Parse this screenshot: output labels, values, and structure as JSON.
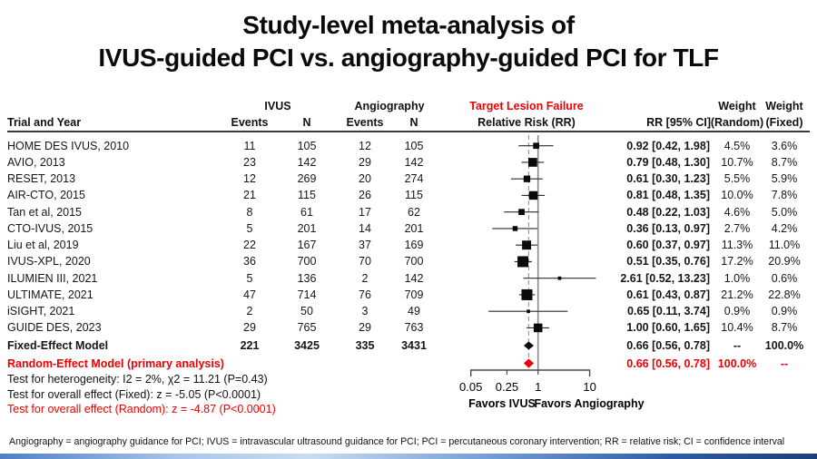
{
  "title": {
    "line1": "Study-level meta-analysis of",
    "line2": "IVUS-guided PCI vs. angiography-guided PCI for TLF"
  },
  "colors": {
    "red": "#ee0000",
    "black": "#0a0a0a",
    "null_line_gray": "#8a8a8a",
    "axis_gray": "#4a4a4a"
  },
  "header": {
    "trial": "Trial and Year",
    "group_ivus": "IVUS",
    "group_angio": "Angiography",
    "group_tlf": "Target  Lesion Failure",
    "events1": "Events",
    "n1": "N",
    "events2": "Events",
    "n2": "N",
    "rr_axis": "Relative Risk (RR)",
    "rr_ci": "RR [95% CI]",
    "weight1": "Weight",
    "weight2": "Weight",
    "random": "(Random)",
    "fixed": "(Fixed)"
  },
  "chart_data": {
    "type": "forest",
    "x_scale": "log",
    "axis_ticks": [
      0.05,
      0.25,
      1,
      10
    ],
    "axis_tick_labels": [
      "0.05",
      "0.25",
      "1",
      "10"
    ],
    "null_line": 1,
    "pooled_line": 0.66,
    "favors_left": "Favors IVUS",
    "favors_right": "Favors Angiography",
    "studies": [
      {
        "name": "HOME DES IVUS, 2010",
        "ivus_events": "11",
        "ivus_n": "105",
        "angio_events": "12",
        "angio_n": "105",
        "rr": 0.92,
        "lo": 0.42,
        "hi": 1.98,
        "rr_text": "0.92 [0.42, 1.98]",
        "w_random": "4.5%",
        "w_fixed": "3.6%",
        "weight": 4.5
      },
      {
        "name": "AVIO, 2013",
        "ivus_events": "23",
        "ivus_n": "142",
        "angio_events": "29",
        "angio_n": "142",
        "rr": 0.79,
        "lo": 0.48,
        "hi": 1.3,
        "rr_text": "0.79 [0.48, 1.30]",
        "w_random": "10.7%",
        "w_fixed": "8.7%",
        "weight": 10.7
      },
      {
        "name": "RESET, 2013",
        "ivus_events": "12",
        "ivus_n": "269",
        "angio_events": "20",
        "angio_n": "274",
        "rr": 0.61,
        "lo": 0.3,
        "hi": 1.23,
        "rr_text": "0.61 [0.30, 1.23]",
        "w_random": "5.5%",
        "w_fixed": "5.9%",
        "weight": 5.5
      },
      {
        "name": "AIR-CTO, 2015",
        "ivus_events": "21",
        "ivus_n": "115",
        "angio_events": "26",
        "angio_n": "115",
        "rr": 0.81,
        "lo": 0.48,
        "hi": 1.35,
        "rr_text": "0.81 [0.48, 1.35]",
        "w_random": "10.0%",
        "w_fixed": "7.8%",
        "weight": 10.0
      },
      {
        "name": "Tan et al, 2015",
        "ivus_events": "8",
        "ivus_n": "61",
        "angio_events": "17",
        "angio_n": "62",
        "rr": 0.48,
        "lo": 0.22,
        "hi": 1.03,
        "rr_text": "0.48 [0.22, 1.03]",
        "w_random": "4.6%",
        "w_fixed": "5.0%",
        "weight": 4.6
      },
      {
        "name": "CTO-IVUS, 2015",
        "ivus_events": "5",
        "ivus_n": "201",
        "angio_events": "14",
        "angio_n": "201",
        "rr": 0.36,
        "lo": 0.13,
        "hi": 0.97,
        "rr_text": "0.36 [0.13, 0.97]",
        "w_random": "2.7%",
        "w_fixed": "4.2%",
        "weight": 2.7
      },
      {
        "name": "Liu et al, 2019",
        "ivus_events": "22",
        "ivus_n": "167",
        "angio_events": "37",
        "angio_n": "169",
        "rr": 0.6,
        "lo": 0.37,
        "hi": 0.97,
        "rr_text": "0.60 [0.37, 0.97]",
        "w_random": "11.3%",
        "w_fixed": "11.0%",
        "weight": 11.3
      },
      {
        "name": "IVUS-XPL, 2020",
        "ivus_events": "36",
        "ivus_n": "700",
        "angio_events": "70",
        "angio_n": "700",
        "rr": 0.51,
        "lo": 0.35,
        "hi": 0.76,
        "rr_text": "0.51 [0.35, 0.76]",
        "w_random": "17.2%",
        "w_fixed": "20.9%",
        "weight": 17.2
      },
      {
        "name": "ILUMIEN III, 2021",
        "ivus_events": "5",
        "ivus_n": "136",
        "angio_events": "2",
        "angio_n": "142",
        "rr": 2.61,
        "lo": 0.52,
        "hi": 13.23,
        "rr_text": "2.61 [0.52, 13.23]",
        "w_random": "1.0%",
        "w_fixed": "0.6%",
        "weight": 1.0
      },
      {
        "name": "ULTIMATE, 2021",
        "ivus_events": "47",
        "ivus_n": "714",
        "angio_events": "76",
        "angio_n": "709",
        "rr": 0.61,
        "lo": 0.43,
        "hi": 0.87,
        "rr_text": "0.61 [0.43, 0.87]",
        "w_random": "21.2%",
        "w_fixed": "22.8%",
        "weight": 21.2
      },
      {
        "name": "iSIGHT, 2021",
        "ivus_events": "2",
        "ivus_n": "50",
        "angio_events": "3",
        "angio_n": "49",
        "rr": 0.65,
        "lo": 0.11,
        "hi": 3.74,
        "rr_text": "0.65 [0.11, 3.74]",
        "w_random": "0.9%",
        "w_fixed": "0.9%",
        "weight": 0.9
      },
      {
        "name": "GUIDE DES, 2023",
        "ivus_events": "29",
        "ivus_n": "765",
        "angio_events": "29",
        "angio_n": "763",
        "rr": 1.0,
        "lo": 0.6,
        "hi": 1.65,
        "rr_text": "1.00 [0.60, 1.65]",
        "w_random": "10.4%",
        "w_fixed": "8.7%",
        "weight": 10.4
      }
    ],
    "summary": [
      {
        "name": "Fixed-Effect Model",
        "ivus_events": "221",
        "ivus_n": "3425",
        "angio_events": "335",
        "angio_n": "3431",
        "rr": 0.66,
        "lo": 0.56,
        "hi": 0.78,
        "rr_text": "0.66 [0.56, 0.78]",
        "w_random": "--",
        "w_fixed": "100.0%",
        "style": "black"
      },
      {
        "name": "Random-Effect Model (primary analysis)",
        "ivus_events": "",
        "ivus_n": "",
        "angio_events": "",
        "angio_n": "",
        "rr": 0.66,
        "lo": 0.56,
        "hi": 0.78,
        "rr_text": "0.66 [0.56, 0.78]",
        "w_random": "100.0%",
        "w_fixed": "--",
        "style": "red"
      }
    ]
  },
  "tests": {
    "heterogeneity": "Test for heterogeneity:  I2 = 2%,   χ2 = 11.21 (P=0.43)",
    "fixed": "Test for overall effect (Fixed):   z  = -5.05  (P<0.0001)",
    "random": "Test for overall effect (Random):   z  = -4.87  (P<0.0001)"
  },
  "footnote": "Angiography = angiography guidance for PCI; IVUS = intravascular ultrasound guidance for PCI; PCI = percutaneous coronary intervention; RR = relative risk; CI = confidence interval"
}
